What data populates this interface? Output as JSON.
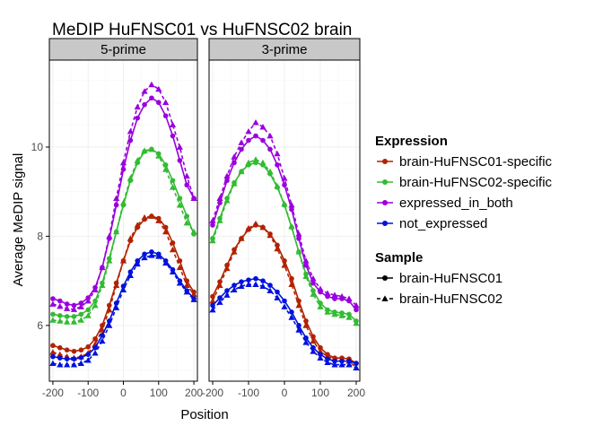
{
  "chart_data": {
    "type": "line",
    "title": "MeDIP HuFNSC01 vs HuFNSC02 brain",
    "xlabel": "Position",
    "ylabel": "Average MeDIP signal",
    "xlim": [
      -210,
      210
    ],
    "ylim": [
      4.75,
      11.95
    ],
    "x_ticks": [
      -200,
      -100,
      0,
      100,
      200
    ],
    "x_tick_labels": [
      "-200",
      "-100",
      "0",
      "100",
      "200"
    ],
    "y_ticks": [
      6,
      8,
      10
    ],
    "y_tick_labels": [
      "6",
      "8",
      "10"
    ],
    "grid": true,
    "legend_placement": "right",
    "x": [
      -200,
      -180,
      -160,
      -140,
      -120,
      -100,
      -80,
      -60,
      -40,
      -20,
      0,
      20,
      40,
      60,
      80,
      100,
      120,
      140,
      160,
      180,
      200
    ],
    "panels": [
      {
        "label": "5-prime",
        "series": [
          {
            "expression": "brain-HuFNSC01-specific",
            "sample": "brain-HuFNSC01",
            "values": [
              5.55,
              5.5,
              5.45,
              5.42,
              5.45,
              5.52,
              5.7,
              6.0,
              6.45,
              6.95,
              7.45,
              7.9,
              8.2,
              8.38,
              8.45,
              8.4,
              8.2,
              7.85,
              7.45,
              7.0,
              6.75
            ]
          },
          {
            "expression": "brain-HuFNSC01-specific",
            "sample": "brain-HuFNSC02",
            "values": [
              5.4,
              5.35,
              5.3,
              5.27,
              5.3,
              5.38,
              5.58,
              5.9,
              6.35,
              6.9,
              7.45,
              7.95,
              8.25,
              8.42,
              8.45,
              8.35,
              8.1,
              7.7,
              7.3,
              6.9,
              6.7
            ]
          },
          {
            "expression": "brain-HuFNSC02-specific",
            "sample": "brain-HuFNSC01",
            "values": [
              6.25,
              6.22,
              6.2,
              6.2,
              6.25,
              6.35,
              6.55,
              6.95,
              7.5,
              8.1,
              8.7,
              9.25,
              9.65,
              9.9,
              9.95,
              9.85,
              9.6,
              9.25,
              8.85,
              8.45,
              8.05
            ]
          },
          {
            "expression": "brain-HuFNSC02-specific",
            "sample": "brain-HuFNSC02",
            "values": [
              6.12,
              6.1,
              6.08,
              6.08,
              6.12,
              6.22,
              6.45,
              6.9,
              7.45,
              8.1,
              8.75,
              9.3,
              9.7,
              9.92,
              9.95,
              9.8,
              9.5,
              9.1,
              8.7,
              8.3,
              8.1
            ]
          },
          {
            "expression": "expressed_in_both",
            "sample": "brain-HuFNSC01",
            "values": [
              6.6,
              6.55,
              6.48,
              6.45,
              6.5,
              6.62,
              6.85,
              7.3,
              7.95,
              8.7,
              9.5,
              10.15,
              10.65,
              10.95,
              11.1,
              11.0,
              10.7,
              10.25,
              9.7,
              9.15,
              8.85
            ]
          },
          {
            "expression": "expressed_in_both",
            "sample": "brain-HuFNSC02",
            "values": [
              6.48,
              6.43,
              6.38,
              6.36,
              6.42,
              6.55,
              6.8,
              7.3,
              8.0,
              8.85,
              9.65,
              10.35,
              10.9,
              11.25,
              11.4,
              11.3,
              11.0,
              10.5,
              10.0,
              9.35,
              8.85
            ]
          },
          {
            "expression": "not_expressed",
            "sample": "brain-HuFNSC01",
            "values": [
              5.3,
              5.27,
              5.25,
              5.25,
              5.28,
              5.35,
              5.5,
              5.78,
              6.1,
              6.5,
              6.88,
              7.2,
              7.45,
              7.6,
              7.65,
              7.6,
              7.45,
              7.25,
              7.0,
              6.78,
              6.6
            ]
          },
          {
            "expression": "not_expressed",
            "sample": "brain-HuFNSC02",
            "values": [
              5.15,
              5.12,
              5.12,
              5.12,
              5.15,
              5.22,
              5.38,
              5.65,
              6.0,
              6.4,
              6.8,
              7.12,
              7.38,
              7.52,
              7.57,
              7.55,
              7.4,
              7.2,
              6.95,
              6.75,
              6.58
            ]
          }
        ]
      },
      {
        "label": "3-prime",
        "series": [
          {
            "expression": "brain-HuFNSC01-specific",
            "sample": "brain-HuFNSC01",
            "values": [
              6.65,
              6.98,
              7.35,
              7.7,
              7.95,
              8.15,
              8.25,
              8.2,
              8.05,
              7.8,
              7.45,
              7.05,
              6.55,
              6.1,
              5.75,
              5.5,
              5.35,
              5.27,
              5.27,
              5.25,
              5.15
            ]
          },
          {
            "expression": "brain-HuFNSC01-specific",
            "sample": "brain-HuFNSC02",
            "values": [
              6.55,
              6.9,
              7.28,
              7.65,
              7.95,
              8.18,
              8.28,
              8.2,
              8.02,
              7.72,
              7.35,
              6.92,
              6.45,
              6.0,
              5.65,
              5.42,
              5.3,
              5.25,
              5.25,
              5.2,
              5.05
            ]
          },
          {
            "expression": "brain-HuFNSC02-specific",
            "sample": "brain-HuFNSC01",
            "values": [
              7.95,
              8.4,
              8.85,
              9.2,
              9.45,
              9.6,
              9.65,
              9.6,
              9.4,
              9.1,
              8.7,
              8.2,
              7.65,
              7.15,
              6.78,
              6.5,
              6.35,
              6.3,
              6.28,
              6.25,
              6.1
            ]
          },
          {
            "expression": "brain-HuFNSC02-specific",
            "sample": "brain-HuFNSC02",
            "values": [
              7.9,
              8.35,
              8.8,
              9.18,
              9.45,
              9.65,
              9.72,
              9.65,
              9.45,
              9.12,
              8.72,
              8.22,
              7.65,
              7.1,
              6.7,
              6.42,
              6.3,
              6.25,
              6.22,
              6.18,
              6.05
            ]
          },
          {
            "expression": "expressed_in_both",
            "sample": "brain-HuFNSC01",
            "values": [
              8.25,
              8.75,
              9.25,
              9.65,
              9.95,
              10.15,
              10.25,
              10.15,
              9.95,
              9.6,
              9.15,
              8.6,
              7.95,
              7.35,
              6.95,
              6.75,
              6.65,
              6.6,
              6.6,
              6.55,
              6.35
            ]
          },
          {
            "expression": "expressed_in_both",
            "sample": "brain-HuFNSC02",
            "values": [
              8.35,
              8.85,
              9.35,
              9.78,
              10.1,
              10.35,
              10.55,
              10.45,
              10.25,
              9.85,
              9.3,
              8.7,
              8.05,
              7.45,
              7.05,
              6.82,
              6.72,
              6.68,
              6.65,
              6.6,
              6.45
            ]
          },
          {
            "expression": "not_expressed",
            "sample": "brain-HuFNSC01",
            "values": [
              6.45,
              6.62,
              6.78,
              6.9,
              6.98,
              7.02,
              7.05,
              7.0,
              6.9,
              6.75,
              6.55,
              6.3,
              6.0,
              5.72,
              5.5,
              5.35,
              5.25,
              5.2,
              5.2,
              5.2,
              5.15
            ]
          },
          {
            "expression": "not_expressed",
            "sample": "brain-HuFNSC02",
            "values": [
              6.35,
              6.52,
              6.68,
              6.8,
              6.88,
              6.92,
              6.92,
              6.88,
              6.78,
              6.62,
              6.42,
              6.18,
              5.9,
              5.62,
              5.42,
              5.27,
              5.17,
              5.12,
              5.12,
              5.12,
              5.05
            ]
          }
        ]
      }
    ],
    "legend_expression": {
      "title": "Expression",
      "entries": [
        {
          "label": "brain-HuFNSC01-specific",
          "color": "#b22200"
        },
        {
          "label": "brain-HuFNSC02-specific",
          "color": "#33bb33"
        },
        {
          "label": "expressed_in_both",
          "color": "#9900dd"
        },
        {
          "label": "not_expressed",
          "color": "#0011dd"
        }
      ]
    },
    "legend_sample": {
      "title": "Sample",
      "entries": [
        {
          "label": "brain-HuFNSC01",
          "line": "solid",
          "marker": "circle"
        },
        {
          "label": "brain-HuFNSC02",
          "line": "dashed",
          "marker": "triangle"
        }
      ]
    }
  }
}
